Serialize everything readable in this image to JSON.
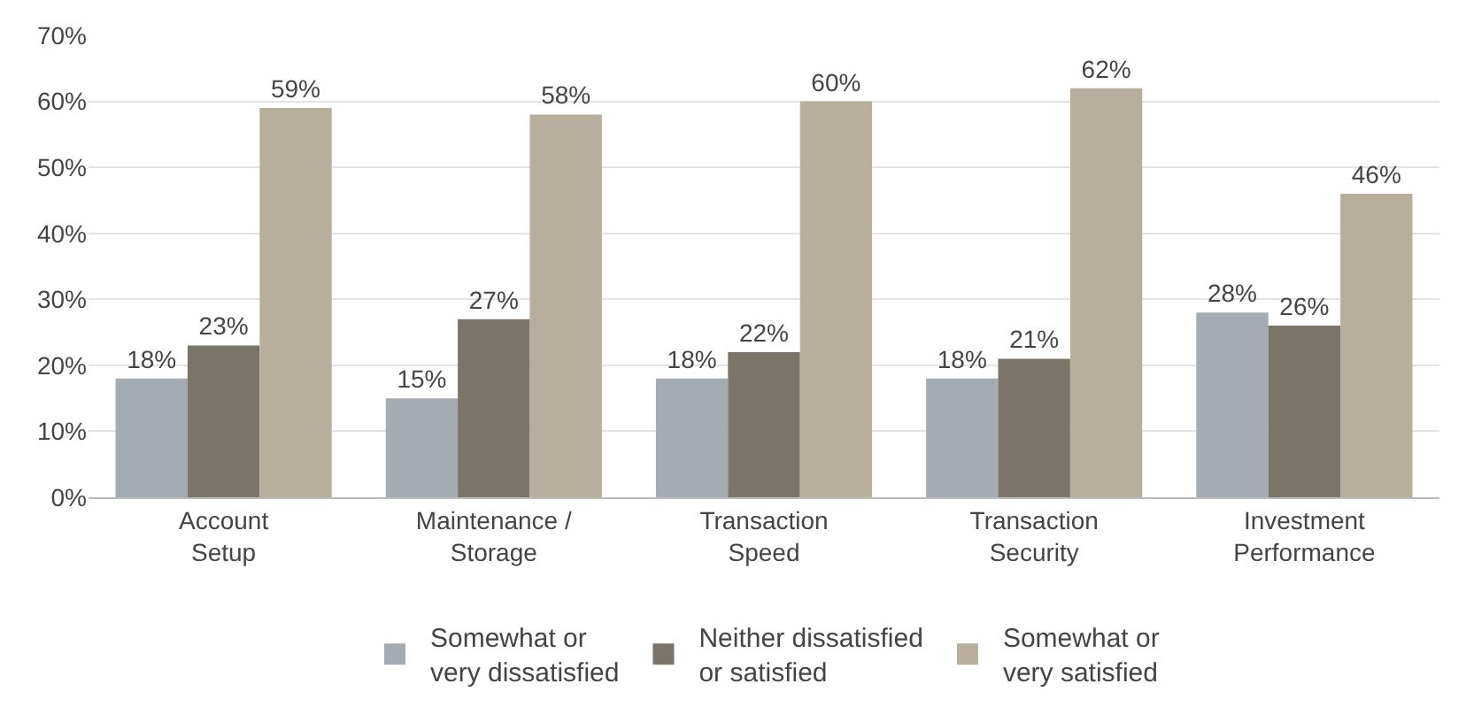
{
  "chart_data": {
    "type": "bar",
    "categories": [
      "Account\nSetup",
      "Maintenance /\nStorage",
      "Transaction\nSpeed",
      "Transaction\nSecurity",
      "Investment\nPerformance"
    ],
    "series": [
      {
        "name": "Somewhat or\nvery dissatisfied",
        "color": "#a4abb2",
        "values": [
          18,
          15,
          18,
          18,
          28
        ],
        "value_labels": [
          "18%",
          "15%",
          "18%",
          "18%",
          "28%"
        ]
      },
      {
        "name": "Neither dissatisfied\nor satisfied",
        "color": "#7b7469",
        "values": [
          23,
          27,
          22,
          21,
          26
        ],
        "value_labels": [
          "23%",
          "27%",
          "22%",
          "21%",
          "26%"
        ]
      },
      {
        "name": "Somewhat or\nvery satisfied",
        "color": "#b7ae9c",
        "values": [
          59,
          58,
          60,
          62,
          46
        ],
        "value_labels": [
          "59%",
          "58%",
          "60%",
          "62%",
          "46%"
        ]
      }
    ],
    "ylim": [
      0,
      70
    ],
    "yticks": [
      {
        "value": 0,
        "label": "0%"
      },
      {
        "value": 10,
        "label": "10%"
      },
      {
        "value": 20,
        "label": "20%"
      },
      {
        "value": 30,
        "label": "30%"
      },
      {
        "value": 40,
        "label": "40%"
      },
      {
        "value": 50,
        "label": "50%"
      },
      {
        "value": 60,
        "label": "60%"
      },
      {
        "value": 70,
        "label": "70%"
      }
    ],
    "grid": "y",
    "legend": "bottom"
  }
}
